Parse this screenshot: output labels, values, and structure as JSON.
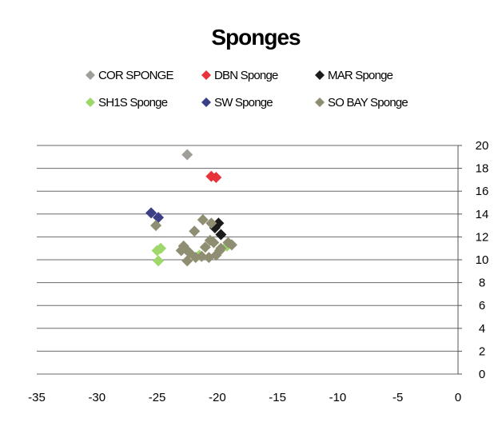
{
  "chart_data": {
    "type": "scatter",
    "title": "Sponges",
    "xlabel": "",
    "ylabel": "",
    "xlim": [
      -35,
      0
    ],
    "ylim": [
      0,
      20
    ],
    "x_ticks": [
      "-35",
      "-30",
      "-25",
      "-20",
      "-15",
      "-10",
      "-5",
      "0"
    ],
    "y_ticks": [
      "0",
      "2",
      "4",
      "6",
      "8",
      "10",
      "12",
      "14",
      "16",
      "18",
      "20"
    ],
    "y_axis_side": "right",
    "grid": "horizontal",
    "legend_position": "top",
    "series": [
      {
        "name": "COR SPONGE",
        "color": "#a09e98",
        "marker": "diamond",
        "points": [
          [
            -22.5,
            19.2
          ]
        ]
      },
      {
        "name": "DBN Sponge",
        "color": "#e8333a",
        "marker": "diamond",
        "points": [
          [
            -20.5,
            17.3
          ],
          [
            -20.1,
            17.2
          ]
        ]
      },
      {
        "name": "MAR Sponge",
        "color": "#1b1b1b",
        "marker": "diamond",
        "points": [
          [
            -19.9,
            13.2
          ],
          [
            -19.7,
            12.2
          ],
          [
            -20.2,
            12.8
          ]
        ]
      },
      {
        "name": "SH1S Sponge",
        "color": "#9fd86a",
        "marker": "diamond",
        "points": [
          [
            -25.0,
            10.8
          ],
          [
            -24.9,
            9.9
          ],
          [
            -21.5,
            10.4
          ],
          [
            -19.2,
            11.2
          ],
          [
            -24.7,
            11.0
          ]
        ]
      },
      {
        "name": "SW Sponge",
        "color": "#3b3f86",
        "marker": "diamond",
        "points": [
          [
            -25.5,
            14.1
          ],
          [
            -24.9,
            13.7
          ]
        ]
      },
      {
        "name": "SO BAY Sponge",
        "color": "#8f8e72",
        "marker": "diamond",
        "points": [
          [
            -25.1,
            13.0
          ],
          [
            -21.9,
            12.5
          ],
          [
            -21.2,
            13.5
          ],
          [
            -20.5,
            13.2
          ],
          [
            -20.3,
            11.5
          ],
          [
            -19.7,
            11.0
          ],
          [
            -19.1,
            11.5
          ],
          [
            -18.8,
            11.3
          ],
          [
            -20.1,
            10.4
          ],
          [
            -20.7,
            10.2
          ],
          [
            -21.3,
            10.3
          ],
          [
            -21.8,
            10.2
          ],
          [
            -22.3,
            10.6
          ],
          [
            -22.6,
            10.9
          ],
          [
            -22.8,
            11.2
          ],
          [
            -23.0,
            10.8
          ],
          [
            -22.5,
            9.9
          ],
          [
            -19.8,
            10.8
          ],
          [
            -20.6,
            11.7
          ],
          [
            -21.0,
            11.1
          ]
        ]
      }
    ]
  }
}
